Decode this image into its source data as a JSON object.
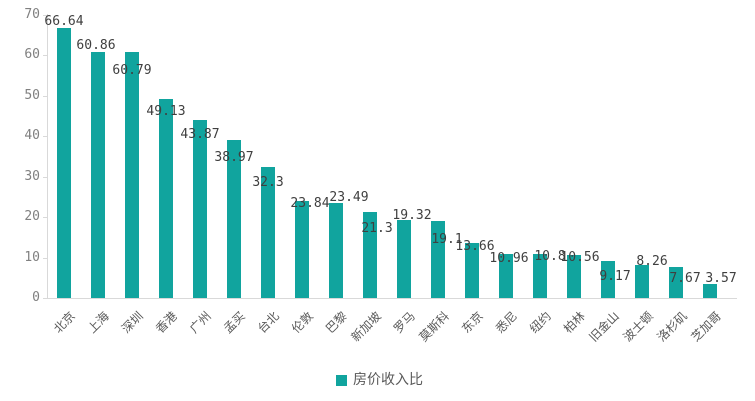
{
  "chart_data": {
    "type": "bar",
    "title": "",
    "categories": [
      "北京",
      "上海",
      "深圳",
      "香港",
      "广州",
      "孟买",
      "台北",
      "伦敦",
      "巴黎",
      "新加坡",
      "罗马",
      "莫斯科",
      "东京",
      "悉尼",
      "纽约",
      "柏林",
      "旧金山",
      "波士顿",
      "洛杉矶",
      "芝加哥"
    ],
    "values": [
      66.64,
      60.86,
      60.79,
      49.13,
      43.87,
      38.97,
      32.3,
      23.84,
      23.49,
      21.3,
      19.32,
      19.1,
      13.66,
      10.96,
      10.8,
      10.56,
      9.17,
      8.26,
      7.67,
      3.57
    ],
    "series_name": "房价收入比",
    "xlabel": "",
    "ylabel": "",
    "ylim": [
      0,
      70
    ],
    "yticks": [
      0,
      10,
      20,
      30,
      40,
      50,
      60,
      70
    ],
    "grid": false,
    "legend_position": "bottom",
    "value_labels_visible": true,
    "label_dx": [
      0,
      -2,
      0,
      0,
      0,
      0,
      0,
      8,
      13,
      7,
      8,
      9,
      3,
      3,
      10,
      6,
      7,
      10,
      9,
      11
    ],
    "label_dy": [
      -13,
      -13,
      12,
      6,
      8,
      11,
      9,
      -4,
      -12,
      10,
      -11,
      12,
      -3,
      -2,
      -4,
      -4,
      9,
      -10,
      5,
      -12
    ]
  },
  "legend": {
    "label": "房价收入比"
  },
  "colors": {
    "bar": "#11a49e",
    "value_label": "#3f3f3f",
    "axis_tick_label": "#808080",
    "category_label": "#595959",
    "axis_line": "#d9d9d9",
    "legend_text": "#595959",
    "background": "#ffffff"
  }
}
